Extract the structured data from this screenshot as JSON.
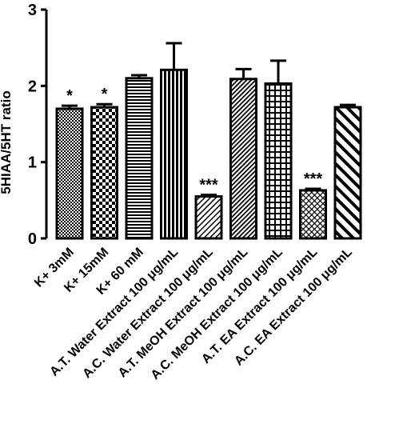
{
  "chart_data": {
    "type": "bar",
    "ylabel": "5HIAA/5HT ratio",
    "ylim": [
      0,
      3
    ],
    "yticks": [
      0,
      1,
      2,
      3
    ],
    "error_bars": true,
    "categories": [
      "K+ 3mM",
      "K+ 15mM",
      "K+ 60 mM",
      "A.T. Water Extract 100 μg/mL",
      "A.C. Water Extract 100 μg/mL",
      "A.T. MeOH Extract 100 μg/mL",
      "A.C. MeOH Extract 100 μg/mL",
      "A.T. EA Extract 100 μg/mL",
      "A.C. EA Extract 100 μg/mL"
    ],
    "values": [
      1.7,
      1.72,
      2.1,
      2.21,
      0.55,
      2.09,
      2.03,
      0.63,
      1.72
    ],
    "errors": [
      0.04,
      0.04,
      0.04,
      0.35,
      0.02,
      0.13,
      0.3,
      0.02,
      0.03
    ],
    "significance": [
      "*",
      "*",
      "",
      "",
      "***",
      "",
      "",
      "***",
      ""
    ],
    "fill_patterns": [
      "fine-checker",
      "coarse-checker",
      "horizontal-lines",
      "vertical-lines",
      "diagonal-lines",
      "dense-diagonal",
      "grid",
      "light-crosshatch",
      "thick-diagonal"
    ]
  }
}
